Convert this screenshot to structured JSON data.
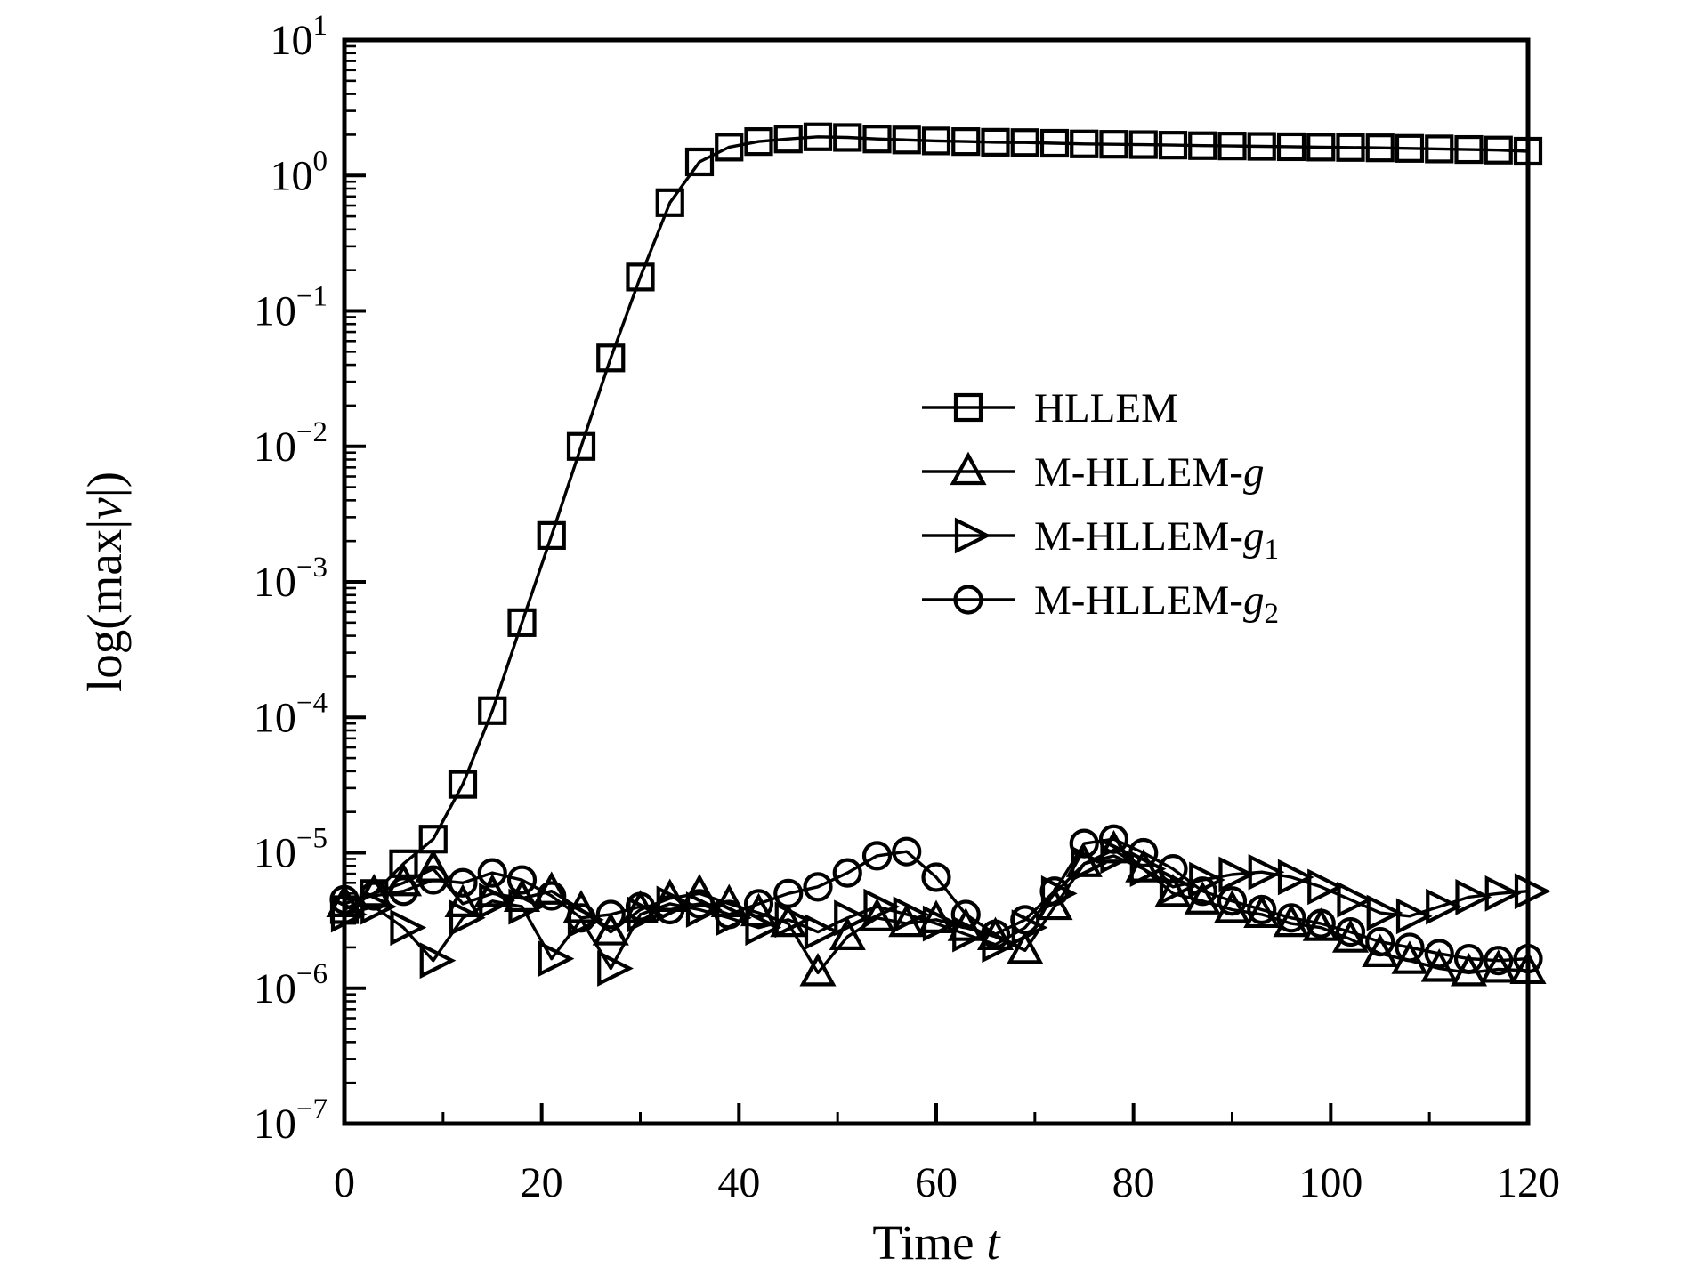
{
  "figure": {
    "xlabel": {
      "prefix": "Time ",
      "t": "t"
    },
    "ylabel": {
      "pre": "log(max|",
      "v": "v",
      "post": "|)"
    }
  },
  "legend": {
    "items": [
      {
        "label": "HLLEM",
        "marker": "square"
      },
      {
        "prefix": "M-HLLEM-",
        "g": "g",
        "sub": "",
        "marker": "triangle-up"
      },
      {
        "prefix": "M-HLLEM-",
        "g": "g",
        "sub": "1",
        "marker": "triangle-right"
      },
      {
        "prefix": "M-HLLEM-",
        "g": "g",
        "sub": "2",
        "marker": "circle"
      }
    ]
  },
  "chart_data": {
    "type": "line",
    "title": "",
    "xlabel": "Time t",
    "ylabel": "log(max|v|)",
    "grid": false,
    "legend_position": "upper right inside",
    "x_axis": {
      "min": 0,
      "max": 120,
      "major_ticks": [
        0,
        20,
        40,
        60,
        80,
        100,
        120
      ],
      "minor_ticks": [
        10,
        30,
        50,
        70,
        90,
        110
      ]
    },
    "y_axis": {
      "scale": "log",
      "min": 1e-07,
      "max": 10,
      "decade_exponents": [
        1,
        0,
        -1,
        -2,
        -3,
        -4,
        -5,
        -6,
        -7
      ]
    },
    "t": [
      0,
      3,
      6,
      9,
      12,
      15,
      18,
      21,
      24,
      27,
      30,
      33,
      36,
      39,
      42,
      45,
      48,
      51,
      54,
      57,
      60,
      63,
      66,
      69,
      72,
      75,
      78,
      81,
      84,
      87,
      90,
      93,
      96,
      99,
      102,
      105,
      108,
      111,
      114,
      117,
      120
    ],
    "series": [
      {
        "name": "HLLEM",
        "marker": "square",
        "values": [
          3.8e-06,
          5e-06,
          8.3e-06,
          1.26e-05,
          3.2e-05,
          0.000112,
          0.0005,
          0.0022,
          0.01,
          0.045,
          0.178,
          0.63,
          1.26,
          1.62,
          1.78,
          1.86,
          1.93,
          1.91,
          1.86,
          1.83,
          1.8,
          1.78,
          1.76,
          1.75,
          1.73,
          1.71,
          1.7,
          1.69,
          1.675,
          1.66,
          1.65,
          1.64,
          1.63,
          1.62,
          1.61,
          1.6,
          1.585,
          1.57,
          1.555,
          1.54,
          1.51
        ]
      },
      {
        "name": "M-HLLEM-g",
        "marker": "triangle-up",
        "values": [
          4.2e-06,
          5e-06,
          6e-06,
          7.6e-06,
          4.2e-06,
          5e-06,
          4.6e-06,
          5.2e-06,
          3.8e-06,
          2.6e-06,
          3.8e-06,
          4.6e-06,
          5e-06,
          4.2e-06,
          3.6e-06,
          3e-06,
          1.3e-06,
          2.4e-06,
          3.3e-06,
          3e-06,
          3.2e-06,
          2.8e-06,
          2.4e-06,
          1.9e-06,
          4e-06,
          8.3e-06,
          1.05e-05,
          7.6e-06,
          5e-06,
          4.4e-06,
          3.8e-06,
          3.5e-06,
          3e-06,
          2.8e-06,
          2.3e-06,
          1.8e-06,
          1.6e-06,
          1.4e-06,
          1.3e-06,
          1.38e-06,
          1.35e-06
        ]
      },
      {
        "name": "M-HLLEM-g1",
        "marker": "triangle-right",
        "values": [
          3.5e-06,
          4e-06,
          2.8e-06,
          1.6e-06,
          3.3e-06,
          4.4e-06,
          4e-06,
          1.65e-06,
          3.2e-06,
          1.4e-06,
          3.5e-06,
          4.2e-06,
          3.8e-06,
          3.3e-06,
          2.8e-06,
          3.2e-06,
          2.6e-06,
          3.3e-06,
          4e-06,
          3.5e-06,
          3e-06,
          2.5e-06,
          2.1e-06,
          2.8e-06,
          5e-06,
          8.3e-06,
          9.5e-06,
          7.6e-06,
          5.6e-06,
          6.3e-06,
          6.9e-06,
          7.2e-06,
          6.6e-06,
          5.6e-06,
          4.5e-06,
          3.6e-06,
          3.4e-06,
          4e-06,
          4.7e-06,
          5e-06,
          5.2e-06
        ]
      },
      {
        "name": "M-HLLEM-g2",
        "marker": "circle",
        "values": [
          4.5e-06,
          4.8e-06,
          5.2e-06,
          6.3e-06,
          6e-06,
          7.1e-06,
          6.3e-06,
          4.8e-06,
          3.3e-06,
          3.5e-06,
          4e-06,
          3.8e-06,
          4.2e-06,
          3.5e-06,
          4.2e-06,
          5e-06,
          5.6e-06,
          7.1e-06,
          9.5e-06,
          1.02e-05,
          6.6e-06,
          3.5e-06,
          2.5e-06,
          3.2e-06,
          5.2e-06,
          1.17e-05,
          1.26e-05,
          1e-05,
          7.6e-06,
          5.2e-06,
          4.4e-06,
          3.8e-06,
          3.3e-06,
          3e-06,
          2.6e-06,
          2.2e-06,
          2e-06,
          1.8e-06,
          1.65e-06,
          1.6e-06,
          1.65e-06
        ]
      }
    ],
    "line_color": "#000000",
    "background_color": "#ffffff"
  }
}
